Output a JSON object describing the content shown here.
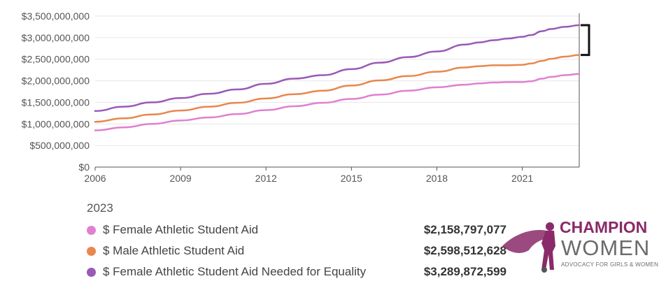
{
  "chart_data": {
    "type": "line",
    "x_ticks": [
      "2006",
      "2009",
      "2012",
      "2015",
      "2018",
      "2021"
    ],
    "x": [
      2006.0,
      2007.0,
      2008.0,
      2009.0,
      2010.0,
      2011.0,
      2012.0,
      2013.0,
      2014.0,
      2015.0,
      2016.0,
      2017.0,
      2018.0,
      2019.0,
      2019.5,
      2020.0,
      2020.5,
      2021.0,
      2021.3,
      2021.7,
      2022.0,
      2022.5,
      2023.0
    ],
    "xlim": [
      2006,
      2023
    ],
    "ylim": [
      0,
      3500000000
    ],
    "y_ticks": [
      "$0",
      "$500,000,000",
      "$1,000,000,000",
      "$1,500,000,000",
      "$2,000,000,000",
      "$2,500,000,000",
      "$3,000,000,000",
      "$3,500,000,000"
    ],
    "grid": true,
    "series": [
      {
        "name": "$ Female Athletic Student Aid",
        "color": "#e080d0",
        "values": [
          850000000,
          920000000,
          1000000000,
          1080000000,
          1150000000,
          1230000000,
          1320000000,
          1410000000,
          1490000000,
          1580000000,
          1680000000,
          1770000000,
          1850000000,
          1910000000,
          1940000000,
          1960000000,
          1970000000,
          1970000000,
          1990000000,
          2050000000,
          2090000000,
          2130000000,
          2158797077
        ]
      },
      {
        "name": "$ Male Athletic Student Aid",
        "color": "#e8874f",
        "values": [
          1050000000,
          1130000000,
          1220000000,
          1310000000,
          1400000000,
          1490000000,
          1590000000,
          1690000000,
          1770000000,
          1890000000,
          2010000000,
          2110000000,
          2210000000,
          2310000000,
          2340000000,
          2360000000,
          2360000000,
          2370000000,
          2400000000,
          2460000000,
          2510000000,
          2560000000,
          2598512628
        ]
      },
      {
        "name": "$ Female Athletic Student Aid Needed for Equality",
        "color": "#9b59b6",
        "values": [
          1300000000,
          1400000000,
          1500000000,
          1600000000,
          1700000000,
          1800000000,
          1930000000,
          2050000000,
          2130000000,
          2270000000,
          2420000000,
          2550000000,
          2680000000,
          2840000000,
          2890000000,
          2940000000,
          2980000000,
          3020000000,
          3060000000,
          3150000000,
          3200000000,
          3250000000,
          3289872599
        ]
      }
    ]
  },
  "legend": {
    "year": "2023",
    "items": [
      {
        "label": "$ Female Athletic Student Aid",
        "value": "$2,158,797,077",
        "color": "#e080d0"
      },
      {
        "label": "$ Male Athletic Student Aid",
        "value": "$2,598,512,628",
        "color": "#e8874f"
      },
      {
        "label": "$ Female Athletic Student Aid Needed for Equality",
        "value": "$3,289,872,599",
        "color": "#9b59b6"
      }
    ]
  },
  "logo": {
    "title": "CHAMPION",
    "subtitle": "WOMEN",
    "tagline": "ADVOCACY FOR GIRLS & WOMEN IN SPORTS",
    "brand_color": "#8a2a68"
  }
}
